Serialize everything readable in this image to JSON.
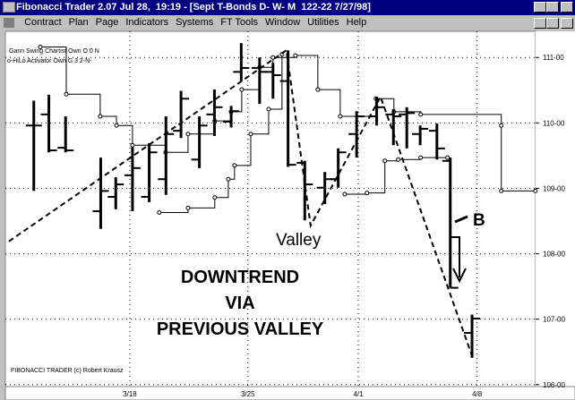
{
  "window": {
    "title": "Fibonacci Trader 2.07 Jul 28,  19:19 - [Sept T-Bonds D- W- M  122-22 7/27/98]",
    "menu": [
      "Contract",
      "Plan",
      "Page",
      "Indicators",
      "Systems",
      "FT Tools",
      "Window",
      "Utilities",
      "Help"
    ]
  },
  "chart_data": {
    "type": "ohlc",
    "indicators": [
      "Gann Swing Chartist Own O 0 N",
      "o-HiLo Activator Own G 3 2-N-"
    ],
    "copyright": "FIBONACCI TRADER (c) Robert Krausz",
    "annotations": [
      "Valley",
      "DOWNTREND",
      "VIA",
      "PREVIOUS VALLEY",
      "B"
    ],
    "xlim": [
      -1.7,
      30
    ],
    "xticks": [
      {
        "value": 5.74,
        "label": "3/18"
      },
      {
        "value": 12.8,
        "label": "3/25"
      },
      {
        "value": 19.4,
        "label": "4/1"
      },
      {
        "value": 26.5,
        "label": "4/8"
      }
    ],
    "ylim": [
      105.97,
      111.4
    ],
    "yticks": [
      {
        "value": 106,
        "label": "106-00"
      },
      {
        "value": 107,
        "label": "107-00"
      },
      {
        "value": 108,
        "label": "108-00"
      },
      {
        "value": 109,
        "label": "109-00"
      },
      {
        "value": 110,
        "label": "110-00"
      },
      {
        "value": 111,
        "label": "111-00"
      }
    ],
    "grid": true,
    "bars": {
      "x": [
        0.0,
        0.9,
        1.9,
        4.0,
        4.9,
        5.9,
        6.9,
        7.9,
        8.8,
        9.9,
        10.8,
        11.8,
        12.4,
        13.5,
        14.3,
        15.2,
        16.2,
        17.4,
        18.2,
        19.3,
        20.5,
        21.5,
        22.3,
        23.1,
        24.1,
        24.9,
        26.2
      ],
      "open": [
        109.96,
        110.13,
        109.62,
        108.65,
        108.87,
        109.2,
        108.87,
        109.14,
        109.88,
        109.44,
        110.13,
        110.02,
        110.78,
        110.84,
        110.78,
        110.64,
        109.39,
        109.01,
        109.14,
        109.83,
        110.1,
        110.13,
        110.13,
        109.83,
        109.88,
        109.42,
        106.79
      ],
      "high": [
        110.34,
        110.43,
        110.1,
        109.47,
        109.17,
        109.63,
        109.69,
        110.1,
        110.49,
        110.1,
        110.51,
        110.26,
        111.22,
        111.0,
        110.92,
        111.11,
        109.42,
        109.25,
        109.61,
        110.18,
        110.4,
        110.21,
        110.24,
        109.96,
        109.99,
        109.47,
        107.07
      ],
      "low": [
        108.96,
        109.55,
        109.55,
        108.38,
        108.68,
        108.65,
        108.79,
        108.9,
        109.77,
        109.31,
        109.8,
        109.93,
        110.64,
        110.29,
        110.37,
        109.33,
        108.51,
        108.76,
        109.01,
        109.47,
        109.96,
        109.66,
        109.61,
        109.66,
        109.44,
        107.48,
        106.41
      ],
      "close": [
        109.96,
        109.58,
        109.58,
        108.96,
        109.06,
        109.31,
        109.55,
        109.83,
        110.37,
        109.96,
        110.24,
        110.18,
        110.84,
        110.78,
        110.73,
        109.36,
        109.06,
        109.14,
        109.55,
        110.1,
        110.24,
        110.1,
        110.15,
        109.91,
        109.61,
        107.48,
        107.01
      ]
    },
    "step_lines": [
      {
        "x": [
          0.39,
          1.94,
          3.97,
          4.94,
          5.9,
          7.88,
          9.22,
          10.82,
          11.79,
          12.43,
          13.5,
          14.3,
          15.64,
          16.98,
          18.32,
          20.46,
          21.53,
          23.13,
          27.95,
          27.95,
          29.99
        ],
        "values": [
          111.16,
          110.44,
          110.1,
          109.96,
          109.66,
          109.55,
          109.83,
          110.03,
          110.17,
          110.51,
          110.85,
          111.0,
          111.03,
          110.51,
          110.1,
          110.37,
          110.17,
          110.13,
          109.96,
          108.96,
          108.96
        ]
      },
      {
        "x": [
          7.5,
          9.22,
          10.82,
          11.63,
          12.0,
          12.97,
          14.04,
          14.84,
          null,
          18.59,
          19.92,
          20.99,
          21.79,
          23.13,
          24.74
        ],
        "values": [
          108.63,
          108.7,
          108.86,
          109.14,
          109.35,
          109.83,
          110.21,
          111.05,
          null,
          108.91,
          108.93,
          109.42,
          109.44,
          109.47,
          109.47
        ]
      }
    ],
    "trend_line": {
      "x": [
        -1.49,
        15.1,
        16.55,
        20.73,
        26.24
      ],
      "values": [
        108.19,
        111.11,
        108.43,
        110.4,
        106.41
      ]
    }
  }
}
